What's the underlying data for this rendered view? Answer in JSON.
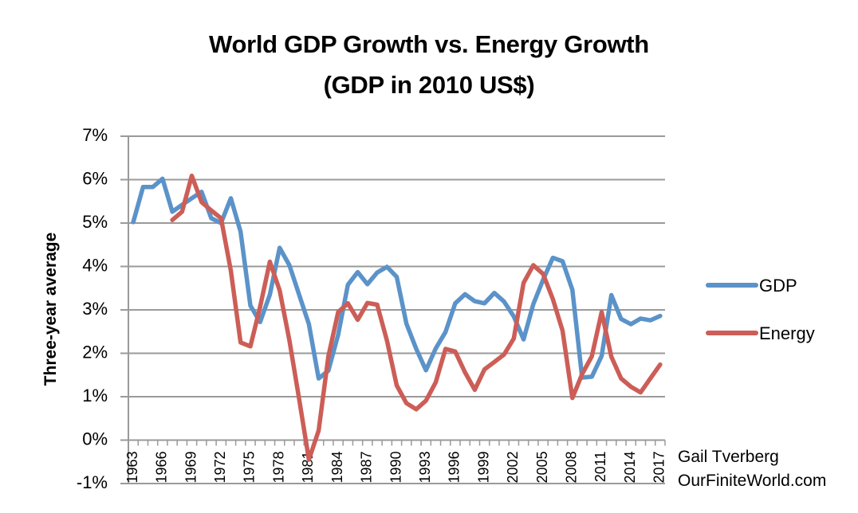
{
  "chart_data": {
    "type": "line",
    "title": "World GDP Growth vs. Energy Growth",
    "subtitle": "(GDP in 2010 US$)",
    "xlabel": "",
    "ylabel": "Three-year average",
    "ylim": [
      -1,
      7
    ],
    "yticks": [
      -1,
      0,
      1,
      2,
      3,
      4,
      5,
      6,
      7
    ],
    "ytick_labels": [
      "-1%",
      "0%",
      "1%",
      "2%",
      "3%",
      "4%",
      "5%",
      "6%",
      "7%"
    ],
    "grid": true,
    "legend_position": "right",
    "x": [
      1963,
      1964,
      1965,
      1966,
      1967,
      1968,
      1969,
      1970,
      1971,
      1972,
      1973,
      1974,
      1975,
      1976,
      1977,
      1978,
      1979,
      1980,
      1981,
      1982,
      1983,
      1984,
      1985,
      1986,
      1987,
      1988,
      1989,
      1990,
      1991,
      1992,
      1993,
      1994,
      1995,
      1996,
      1997,
      1998,
      1999,
      2000,
      2001,
      2002,
      2003,
      2004,
      2005,
      2006,
      2007,
      2008,
      2009,
      2010,
      2011,
      2012,
      2013,
      2014,
      2015,
      2016,
      2017
    ],
    "xtick_labels": [
      "1963",
      "1966",
      "1969",
      "1972",
      "1975",
      "1978",
      "1981",
      "1984",
      "1987",
      "1990",
      "1993",
      "1996",
      "1999",
      "2002",
      "2005",
      "2008",
      "2011",
      "2014",
      "2017"
    ],
    "series": [
      {
        "name": "GDP",
        "color": "#5B93C9",
        "values": [
          5.02,
          5.83,
          5.83,
          6.02,
          5.26,
          5.42,
          5.57,
          5.72,
          5.11,
          5.0,
          5.57,
          4.8,
          3.1,
          2.72,
          3.35,
          4.43,
          4.03,
          3.35,
          2.67,
          1.42,
          1.6,
          2.43,
          3.58,
          3.87,
          3.59,
          3.86,
          3.99,
          3.76,
          2.68,
          2.1,
          1.61,
          2.11,
          2.49,
          3.15,
          3.36,
          3.2,
          3.15,
          3.39,
          3.19,
          2.85,
          2.32,
          3.13,
          3.69,
          4.2,
          4.12,
          3.46,
          1.44,
          1.46,
          1.94,
          3.34,
          2.79,
          2.67,
          2.8,
          2.76,
          2.86
        ]
      },
      {
        "name": "Energy",
        "color": "#CC5E57",
        "values": [
          null,
          null,
          null,
          null,
          5.07,
          5.26,
          6.09,
          5.48,
          5.29,
          5.11,
          3.9,
          2.25,
          2.16,
          3.07,
          4.11,
          3.45,
          2.3,
          0.95,
          -0.45,
          0.22,
          1.93,
          2.95,
          3.15,
          2.77,
          3.16,
          3.12,
          2.29,
          1.26,
          0.85,
          0.71,
          0.91,
          1.33,
          2.1,
          2.04,
          1.56,
          1.16,
          1.63,
          1.8,
          1.97,
          2.34,
          3.62,
          4.03,
          3.83,
          3.25,
          2.52,
          0.97,
          1.52,
          1.93,
          2.95,
          1.92,
          1.42,
          1.23,
          1.1,
          1.42,
          1.74
        ]
      }
    ],
    "annotations": [
      "Gail Tverberg",
      "OurFiniteWorld.com"
    ]
  },
  "credit": {
    "author": "Gail Tverberg",
    "site": "OurFiniteWorld.com"
  }
}
